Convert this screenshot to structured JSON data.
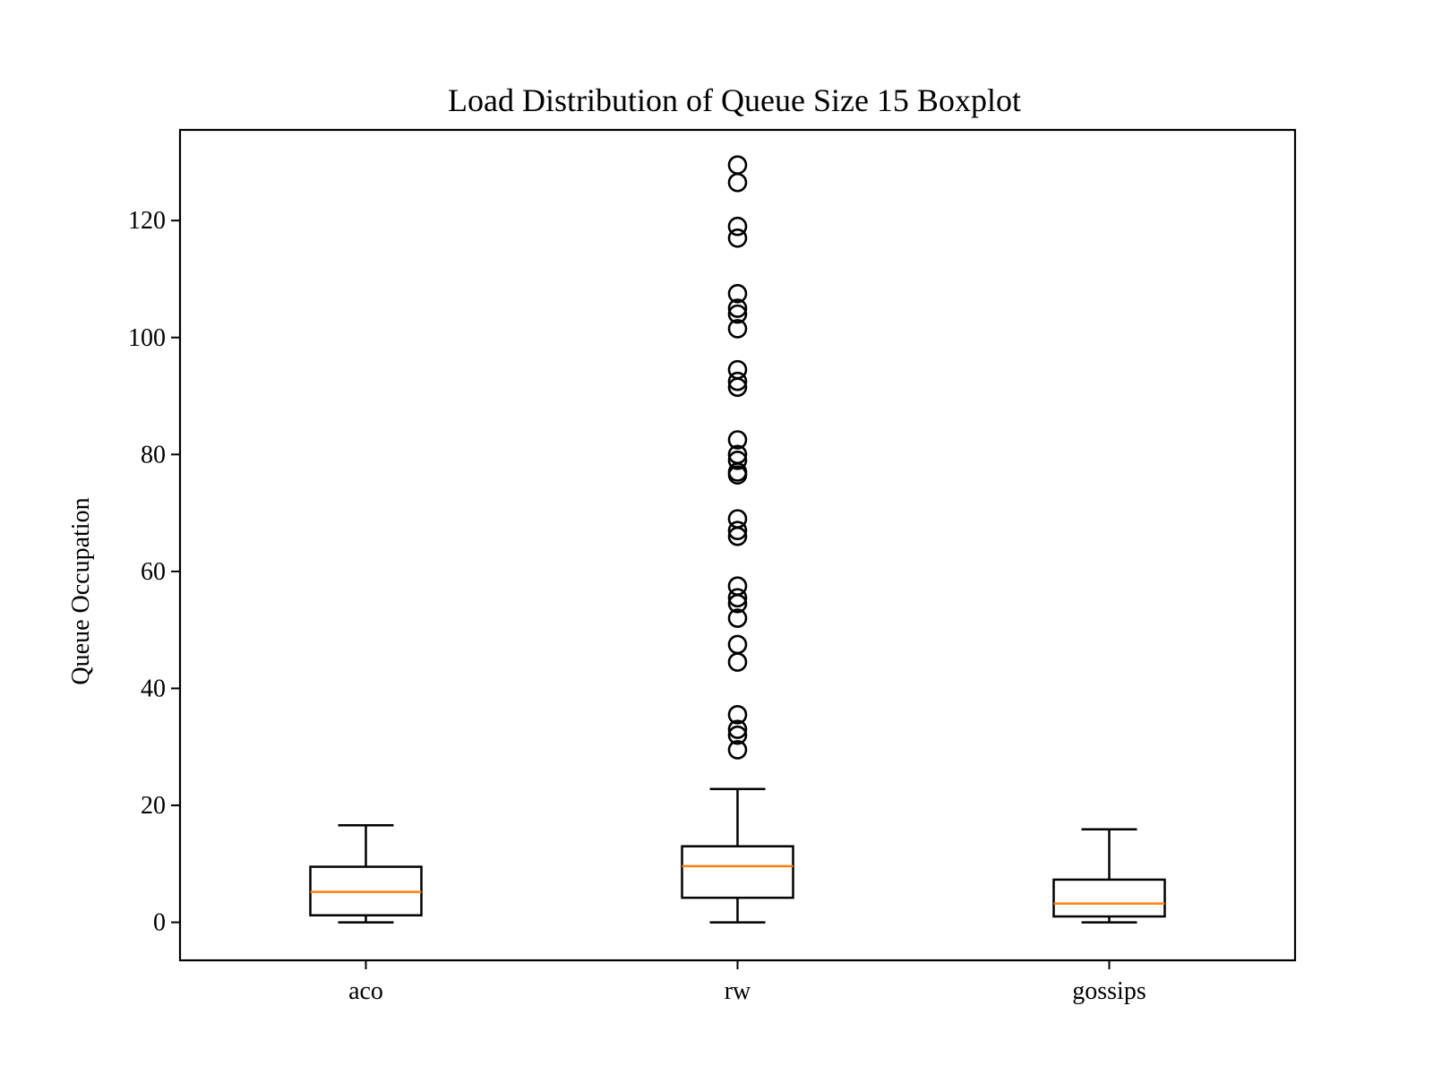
{
  "chart_data": {
    "type": "boxplot",
    "title": "Load Distribution of Queue Size 15 Boxplot",
    "xlabel": "",
    "ylabel": "Queue Occupation",
    "ylim": [
      -6.5,
      135.5
    ],
    "yticks": [
      0,
      20,
      40,
      60,
      80,
      100,
      120
    ],
    "grid": false,
    "categories": [
      "aco",
      "rw",
      "gossips"
    ],
    "boxes": [
      {
        "category": "aco",
        "whisker_low": 0,
        "q1": 1.2,
        "median": 5.2,
        "q3": 9.5,
        "whisker_high": 16.6,
        "outliers": []
      },
      {
        "category": "rw",
        "whisker_low": 0,
        "q1": 4.2,
        "median": 9.6,
        "q3": 13.0,
        "whisker_high": 22.8,
        "outliers": [
          29.5,
          32.0,
          33.0,
          35.5,
          44.5,
          47.5,
          52.0,
          54.5,
          55.5,
          57.5,
          66.0,
          67.0,
          69.0,
          76.5,
          77.0,
          79.0,
          80.0,
          82.5,
          91.5,
          92.5,
          94.5,
          101.5,
          104.0,
          105.0,
          107.5,
          117.0,
          119.0,
          126.5,
          129.5
        ]
      },
      {
        "category": "gossips",
        "whisker_low": 0,
        "q1": 1.0,
        "median": 3.2,
        "q3": 7.3,
        "whisker_high": 15.9,
        "outliers": []
      }
    ],
    "colors": {
      "box": "#000000",
      "median": "#ff7f0e",
      "outlier": "#000000"
    }
  }
}
